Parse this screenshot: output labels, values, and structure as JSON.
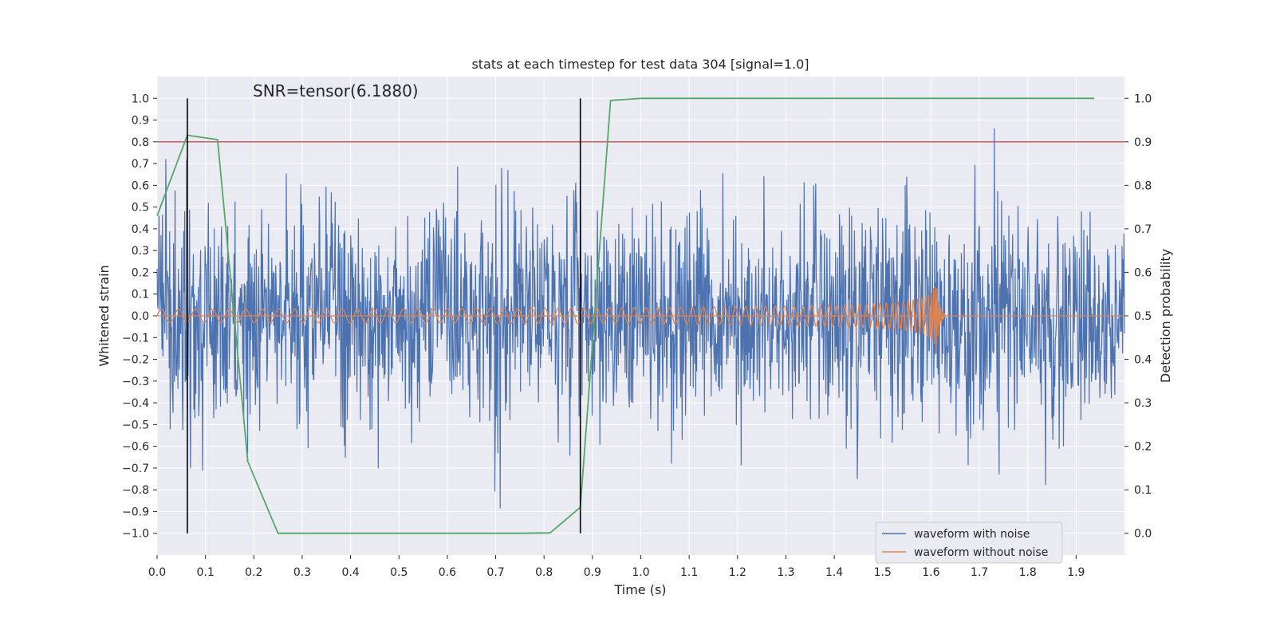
{
  "chart_data": {
    "type": "line",
    "title": "stats at each timestep for test data 304 [signal=1.0]",
    "xlabel": "Time (s)",
    "ylabel": "Whitened strain",
    "y2label": "Detection probability",
    "annotation": "SNR=tensor(6.1880)",
    "xlim": [
      0.0,
      2.0
    ],
    "ylim": [
      -1.1,
      1.1
    ],
    "y2lim": [
      -0.05,
      1.05
    ],
    "x_ticks": [
      "0.0",
      "0.1",
      "0.2",
      "0.3",
      "0.4",
      "0.5",
      "0.6",
      "0.7",
      "0.8",
      "0.9",
      "1.0",
      "1.1",
      "1.2",
      "1.3",
      "1.4",
      "1.5",
      "1.6",
      "1.7",
      "1.8",
      "1.9"
    ],
    "y_ticks": [
      "1.0",
      "0.9",
      "0.8",
      "0.7",
      "0.6",
      "0.5",
      "0.4",
      "0.3",
      "0.2",
      "0.1",
      "0.0",
      "−0.1",
      "−0.2",
      "−0.3",
      "−0.4",
      "−0.5",
      "−0.6",
      "−0.7",
      "−0.8",
      "−0.9",
      "−1.0"
    ],
    "y2_ticks": [
      "1.0",
      "0.9",
      "0.8",
      "0.7",
      "0.6",
      "0.5",
      "0.4",
      "0.3",
      "0.2",
      "0.1",
      "0.0"
    ],
    "threshold": {
      "y2": 0.9,
      "color": "#c44e52"
    },
    "vertical_markers": [
      0.0625,
      0.875
    ],
    "series": [
      {
        "name": "waveform with noise",
        "color": "#4c72b0",
        "kind": "noise",
        "x_range": [
          0.0,
          2.0
        ],
        "typical_std": 0.25
      },
      {
        "name": "waveform without noise",
        "color": "#dd8452",
        "kind": "chirp",
        "x_range": [
          0.0,
          1.63
        ],
        "start_amplitude": 0.03,
        "peak_amplitude": 0.2,
        "peak_time": 1.61,
        "start_frequency_hz": 28
      },
      {
        "name": "detection probability",
        "color": "#55a868",
        "axis": "y2",
        "x": [
          0.0,
          0.0625,
          0.125,
          0.1875,
          0.25,
          0.3125,
          0.375,
          0.4375,
          0.5,
          0.5625,
          0.625,
          0.6875,
          0.75,
          0.8125,
          0.875,
          0.9375,
          1.0,
          1.0625,
          1.125,
          1.1875,
          1.25,
          1.3125,
          1.375,
          1.4375,
          1.5,
          1.5625,
          1.625,
          1.6875,
          1.75,
          1.8125,
          1.875,
          1.9375
        ],
        "y": [
          0.73,
          0.915,
          0.905,
          0.165,
          0.0,
          0.0,
          0.0,
          0.0,
          0.0,
          0.0,
          0.0,
          0.0,
          0.0,
          0.001,
          0.06,
          0.995,
          1.0,
          1.0,
          1.0,
          1.0,
          1.0,
          1.0,
          1.0,
          1.0,
          1.0,
          1.0,
          1.0,
          1.0,
          1.0,
          1.0,
          1.0,
          1.0
        ]
      }
    ],
    "legend": {
      "position": "lower-right",
      "entries": [
        "waveform with noise",
        "waveform without noise"
      ]
    },
    "style": {
      "axes_bg": "#eaeaf2",
      "grid": "#ffffff",
      "marker_color": "#000000"
    }
  }
}
